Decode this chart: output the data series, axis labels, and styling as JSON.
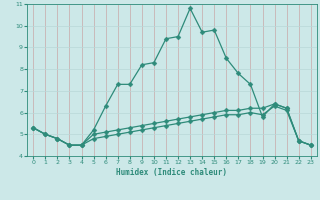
{
  "x": [
    0,
    1,
    2,
    3,
    4,
    5,
    6,
    7,
    8,
    9,
    10,
    11,
    12,
    13,
    14,
    15,
    16,
    17,
    18,
    19,
    20,
    21,
    22,
    23
  ],
  "line1": [
    5.3,
    5.0,
    4.8,
    4.5,
    4.5,
    5.2,
    6.3,
    7.3,
    7.3,
    8.2,
    8.3,
    9.4,
    9.5,
    10.8,
    9.7,
    9.8,
    8.5,
    7.8,
    7.3,
    5.8,
    6.4,
    6.2,
    4.7,
    4.5
  ],
  "line2": [
    5.3,
    5.0,
    4.8,
    4.5,
    4.5,
    5.0,
    5.1,
    5.2,
    5.3,
    5.4,
    5.5,
    5.6,
    5.7,
    5.8,
    5.9,
    6.0,
    6.1,
    6.1,
    6.2,
    6.2,
    6.4,
    6.2,
    4.7,
    4.5
  ],
  "line3": [
    5.3,
    5.0,
    4.8,
    4.5,
    4.5,
    4.8,
    4.9,
    5.0,
    5.1,
    5.2,
    5.3,
    5.4,
    5.5,
    5.6,
    5.7,
    5.8,
    5.9,
    5.9,
    6.0,
    5.9,
    6.3,
    6.1,
    4.7,
    4.5
  ],
  "line_color": "#2e8b7a",
  "bg_color": "#cce8e8",
  "plot_bg": "#cce8e8",
  "bottom_bg": "#d4b8b8",
  "vgrid_color": "#c8a8a8",
  "hgrid_color": "#b8d8d8",
  "xlabel": "Humidex (Indice chaleur)",
  "ylim": [
    4,
    11
  ],
  "xlim": [
    -0.5,
    23.5
  ],
  "yticks": [
    4,
    5,
    6,
    7,
    8,
    9,
    10,
    11
  ],
  "xticks": [
    0,
    1,
    2,
    3,
    4,
    5,
    6,
    7,
    8,
    9,
    10,
    11,
    12,
    13,
    14,
    15,
    16,
    17,
    18,
    19,
    20,
    21,
    22,
    23
  ],
  "markersize": 2.5,
  "linewidth": 0.9
}
